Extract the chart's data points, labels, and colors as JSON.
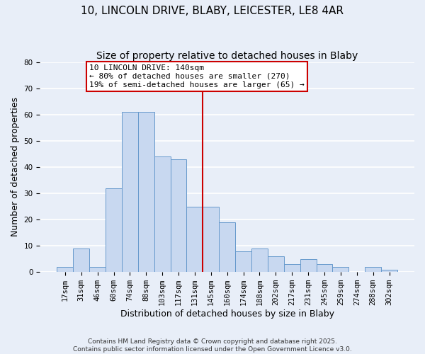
{
  "title": "10, LINCOLN DRIVE, BLABY, LEICESTER, LE8 4AR",
  "subtitle": "Size of property relative to detached houses in Blaby",
  "xlabel": "Distribution of detached houses by size in Blaby",
  "ylabel": "Number of detached properties",
  "bar_labels": [
    "17sqm",
    "31sqm",
    "46sqm",
    "60sqm",
    "74sqm",
    "88sqm",
    "103sqm",
    "117sqm",
    "131sqm",
    "145sqm",
    "160sqm",
    "174sqm",
    "188sqm",
    "202sqm",
    "217sqm",
    "231sqm",
    "245sqm",
    "259sqm",
    "274sqm",
    "288sqm",
    "302sqm"
  ],
  "bar_heights": [
    2,
    9,
    2,
    32,
    61,
    61,
    44,
    43,
    25,
    25,
    19,
    8,
    9,
    6,
    3,
    5,
    3,
    2,
    0,
    2,
    1
  ],
  "bar_color": "#c8d8f0",
  "bar_edgecolor": "#6699cc",
  "vline_color": "#cc0000",
  "annotation_title": "10 LINCOLN DRIVE: 140sqm",
  "annotation_line1": "← 80% of detached houses are smaller (270)",
  "annotation_line2": "19% of semi-detached houses are larger (65) →",
  "annotation_box_color": "#ffffff",
  "annotation_box_edgecolor": "#cc0000",
  "ylim": [
    0,
    80
  ],
  "yticks": [
    0,
    10,
    20,
    30,
    40,
    50,
    60,
    70,
    80
  ],
  "footer1": "Contains HM Land Registry data © Crown copyright and database right 2025.",
  "footer2": "Contains public sector information licensed under the Open Government Licence v3.0.",
  "background_color": "#e8eef8",
  "grid_color": "#ffffff",
  "title_fontsize": 11,
  "subtitle_fontsize": 10,
  "axis_label_fontsize": 9,
  "tick_fontsize": 7.5,
  "footer_fontsize": 6.5,
  "annotation_fontsize": 8
}
